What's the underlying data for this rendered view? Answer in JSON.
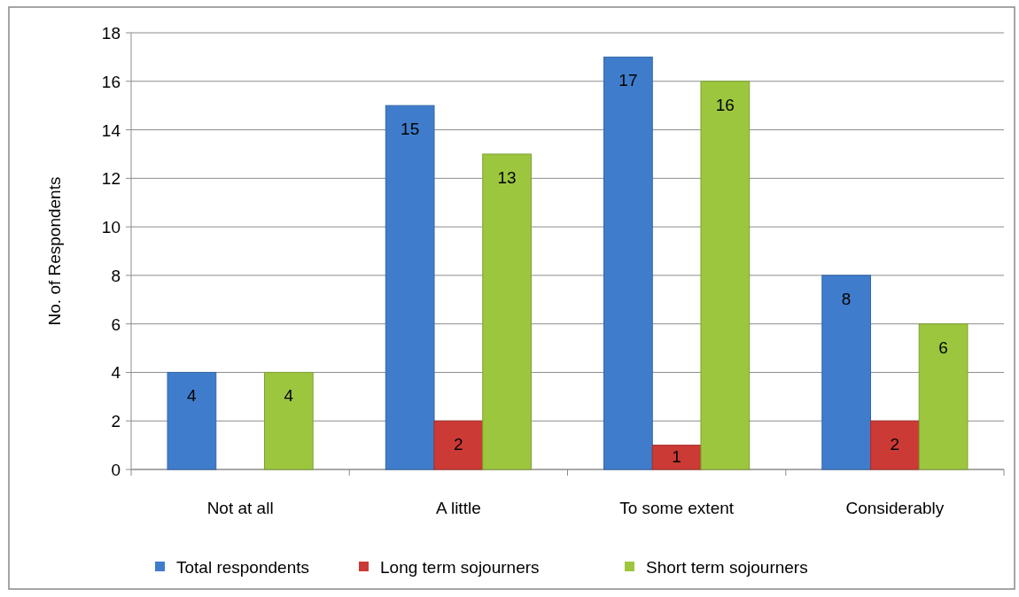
{
  "chart_data": {
    "type": "bar",
    "ylabel": "No. of Respondents",
    "categories": [
      "Not at all",
      "A little",
      "To some extent",
      "Considerably"
    ],
    "series": [
      {
        "name": "Total respondents",
        "color": "#3f7dcc",
        "values": [
          4,
          15,
          17,
          8
        ]
      },
      {
        "name": "Long term sojourners",
        "color": "#cc3a35",
        "values": [
          null,
          2,
          1,
          2
        ]
      },
      {
        "name": "Short term sojourners",
        "color": "#9cc63e",
        "values": [
          4,
          13,
          16,
          6
        ]
      }
    ],
    "ylim": [
      0,
      18
    ],
    "yticks": [
      0,
      2,
      4,
      6,
      8,
      10,
      12,
      14,
      16,
      18
    ],
    "grid": "y",
    "legend": "bottom",
    "data_labels": true
  }
}
